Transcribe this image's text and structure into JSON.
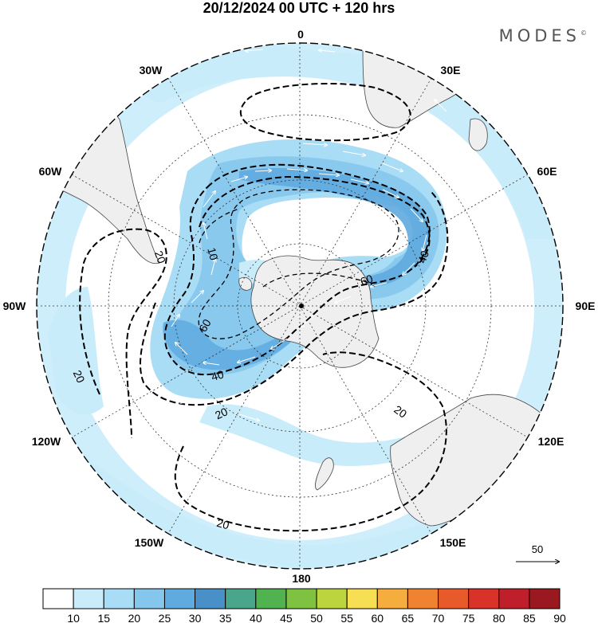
{
  "title": "20/12/2024  00 UTC  + 120 hrs",
  "brand": "MODES",
  "brand_mark": "©",
  "longitude_labels": [
    {
      "text": "0",
      "lon": 0
    },
    {
      "text": "30E",
      "lon": 30
    },
    {
      "text": "60E",
      "lon": 60
    },
    {
      "text": "90E",
      "lon": 90
    },
    {
      "text": "120E",
      "lon": 120
    },
    {
      "text": "150E",
      "lon": 150
    },
    {
      "text": "180",
      "lon": 180
    },
    {
      "text": "150W",
      "lon": -150
    },
    {
      "text": "120W",
      "lon": -120
    },
    {
      "text": "90W",
      "lon": -90
    },
    {
      "text": "60W",
      "lon": -60
    },
    {
      "text": "30W",
      "lon": -30
    }
  ],
  "contour_labels": [
    "20",
    "10",
    "20",
    "20",
    "40",
    "40",
    "60",
    "60",
    "20",
    "20",
    "20"
  ],
  "vector_reference": {
    "value": "50"
  },
  "colorbar": {
    "labels": [
      "10",
      "15",
      "20",
      "25",
      "30",
      "35",
      "40",
      "45",
      "50",
      "55",
      "60",
      "65",
      "70",
      "75",
      "80",
      "85",
      "90"
    ],
    "colors": [
      "#ffffff",
      "#c9ecfb",
      "#a9dcf5",
      "#84c6ec",
      "#5faadf",
      "#4a90c8",
      "#4aa68a",
      "#50b34f",
      "#7fc241",
      "#bcd43d",
      "#f6df52",
      "#f5ad3e",
      "#f08330",
      "#e95a2b",
      "#d93228",
      "#be1f2a",
      "#9a1820"
    ]
  },
  "colors": {
    "land": "#efefef",
    "coast": "#444444",
    "contour": "#000000"
  }
}
